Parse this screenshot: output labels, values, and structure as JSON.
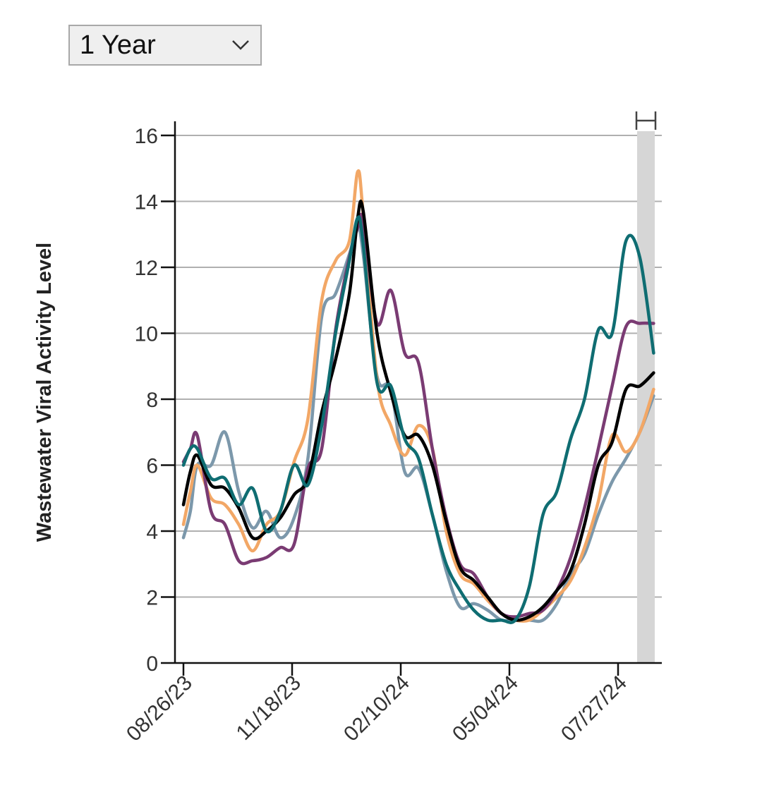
{
  "controls": {
    "range_select": {
      "value": "1 Year"
    }
  },
  "chart_data": {
    "type": "line",
    "title": "",
    "xlabel": "",
    "ylabel": "Wastewater Viral Activity Level",
    "x_tick_labels": [
      "08/26/23",
      "11/18/23",
      "02/10/24",
      "05/04/24",
      "07/27/24"
    ],
    "y_ticks": [
      0,
      2,
      4,
      6,
      8,
      10,
      12,
      14,
      16
    ],
    "ylim": [
      0,
      16
    ],
    "grid": "horizontal",
    "shaded_recent_period": true,
    "series": [
      {
        "color": "#000000",
        "values": [
          [
            0,
            4.8
          ],
          [
            0.5,
            5.8
          ],
          [
            1,
            6.3
          ],
          [
            2,
            5.4
          ],
          [
            3,
            5.3
          ],
          [
            4,
            4.7
          ],
          [
            5,
            3.8
          ],
          [
            6,
            4.0
          ],
          [
            7,
            4.4
          ],
          [
            8,
            5.1
          ],
          [
            9,
            5.6
          ],
          [
            10,
            7.6
          ],
          [
            11,
            9.2
          ],
          [
            12,
            11.2
          ],
          [
            12.6,
            13.5
          ],
          [
            13,
            13.7
          ],
          [
            14,
            10.0
          ],
          [
            15,
            8.2
          ],
          [
            16,
            6.9
          ],
          [
            17,
            6.9
          ],
          [
            18,
            6.0
          ],
          [
            19,
            4.3
          ],
          [
            20,
            2.9
          ],
          [
            21,
            2.5
          ],
          [
            22,
            2.0
          ],
          [
            23,
            1.5
          ],
          [
            24,
            1.3
          ],
          [
            25,
            1.4
          ],
          [
            26,
            1.7
          ],
          [
            27,
            2.2
          ],
          [
            28,
            2.8
          ],
          [
            29,
            4.2
          ],
          [
            30,
            6.0
          ],
          [
            31,
            6.7
          ],
          [
            32,
            8.3
          ],
          [
            33,
            8.4
          ],
          [
            34,
            8.8
          ]
        ]
      },
      {
        "color": "#f2a766",
        "values": [
          [
            0,
            4.2
          ],
          [
            0.5,
            5.2
          ],
          [
            1,
            6.0
          ],
          [
            2,
            5.0
          ],
          [
            3,
            4.8
          ],
          [
            4,
            4.2
          ],
          [
            5,
            3.4
          ],
          [
            6,
            4.2
          ],
          [
            7,
            4.6
          ],
          [
            8,
            6.1
          ],
          [
            9,
            7.4
          ],
          [
            10,
            11.0
          ],
          [
            11,
            12.2
          ],
          [
            12,
            12.8
          ],
          [
            12.6,
            14.9
          ],
          [
            13,
            13.6
          ],
          [
            14,
            8.6
          ],
          [
            15,
            7.2
          ],
          [
            16,
            6.3
          ],
          [
            17,
            7.2
          ],
          [
            18,
            6.5
          ],
          [
            19,
            4.0
          ],
          [
            20,
            2.7
          ],
          [
            21,
            2.4
          ],
          [
            22,
            1.9
          ],
          [
            23,
            1.5
          ],
          [
            24,
            1.3
          ],
          [
            25,
            1.3
          ],
          [
            26,
            1.6
          ],
          [
            27,
            2.0
          ],
          [
            28,
            2.5
          ],
          [
            29,
            3.5
          ],
          [
            30,
            4.9
          ],
          [
            31,
            6.9
          ],
          [
            32,
            6.4
          ],
          [
            33,
            7.0
          ],
          [
            34,
            8.3
          ]
        ]
      },
      {
        "color": "#7c98ab",
        "values": [
          [
            0,
            3.8
          ],
          [
            0.5,
            4.6
          ],
          [
            1,
            6.0
          ],
          [
            2,
            6.0
          ],
          [
            3,
            7.0
          ],
          [
            4,
            5.2
          ],
          [
            5,
            4.1
          ],
          [
            6,
            4.6
          ],
          [
            7,
            3.8
          ],
          [
            8,
            4.4
          ],
          [
            9,
            6.2
          ],
          [
            10,
            10.5
          ],
          [
            11,
            11.2
          ],
          [
            12,
            12.4
          ],
          [
            12.6,
            13.2
          ],
          [
            13,
            12.4
          ],
          [
            14,
            8.7
          ],
          [
            15,
            8.3
          ],
          [
            16,
            5.8
          ],
          [
            17,
            5.9
          ],
          [
            18,
            4.5
          ],
          [
            19,
            2.8
          ],
          [
            20,
            1.7
          ],
          [
            21,
            1.8
          ],
          [
            22,
            1.6
          ],
          [
            23,
            1.3
          ],
          [
            24,
            1.3
          ],
          [
            25,
            1.3
          ],
          [
            26,
            1.3
          ],
          [
            27,
            1.8
          ],
          [
            28,
            2.7
          ],
          [
            29,
            3.3
          ],
          [
            30,
            4.5
          ],
          [
            31,
            5.5
          ],
          [
            32,
            6.2
          ],
          [
            33,
            7.0
          ],
          [
            34,
            8.1
          ]
        ]
      },
      {
        "color": "#7a3b73",
        "values": [
          [
            0,
            6.1
          ],
          [
            0.5,
            6.5
          ],
          [
            1,
            6.9
          ],
          [
            2,
            4.6
          ],
          [
            3,
            4.2
          ],
          [
            4,
            3.1
          ],
          [
            5,
            3.1
          ],
          [
            6,
            3.2
          ],
          [
            7,
            3.5
          ],
          [
            8,
            3.6
          ],
          [
            9,
            5.9
          ],
          [
            10,
            6.5
          ],
          [
            11,
            10.1
          ],
          [
            12,
            12.3
          ],
          [
            12.6,
            13.2
          ],
          [
            13,
            13.4
          ],
          [
            14,
            10.3
          ],
          [
            15,
            11.3
          ],
          [
            16,
            9.4
          ],
          [
            17,
            9.1
          ],
          [
            18,
            6.5
          ],
          [
            19,
            4.4
          ],
          [
            20,
            3.0
          ],
          [
            21,
            2.7
          ],
          [
            22,
            2.0
          ],
          [
            23,
            1.5
          ],
          [
            24,
            1.4
          ],
          [
            25,
            1.5
          ],
          [
            26,
            1.6
          ],
          [
            27,
            2.2
          ],
          [
            28,
            3.2
          ],
          [
            29,
            4.7
          ],
          [
            30,
            6.5
          ],
          [
            31,
            8.4
          ],
          [
            32,
            10.2
          ],
          [
            33,
            10.3
          ],
          [
            34,
            10.3
          ]
        ]
      },
      {
        "color": "#0f6d72",
        "values": [
          [
            0,
            6.0
          ],
          [
            0.5,
            6.5
          ],
          [
            1,
            6.5
          ],
          [
            2,
            5.6
          ],
          [
            3,
            5.6
          ],
          [
            4,
            4.8
          ],
          [
            5,
            5.3
          ],
          [
            6,
            4.0
          ],
          [
            7,
            4.6
          ],
          [
            8,
            6.0
          ],
          [
            9,
            5.4
          ],
          [
            10,
            7.2
          ],
          [
            11,
            10.0
          ],
          [
            12,
            12.2
          ],
          [
            12.6,
            13.5
          ],
          [
            13,
            12.7
          ],
          [
            14,
            8.5
          ],
          [
            15,
            8.4
          ],
          [
            16,
            6.8
          ],
          [
            17,
            6.2
          ],
          [
            18,
            4.5
          ],
          [
            19,
            3.0
          ],
          [
            20,
            2.2
          ],
          [
            21,
            1.6
          ],
          [
            22,
            1.3
          ],
          [
            23,
            1.3
          ],
          [
            24,
            1.3
          ],
          [
            25,
            2.3
          ],
          [
            26,
            4.5
          ],
          [
            27,
            5.2
          ],
          [
            28,
            6.8
          ],
          [
            29,
            8.0
          ],
          [
            30,
            10.1
          ],
          [
            31,
            10.0
          ],
          [
            32,
            12.8
          ],
          [
            33,
            12.3
          ],
          [
            34,
            9.4
          ]
        ]
      }
    ]
  }
}
